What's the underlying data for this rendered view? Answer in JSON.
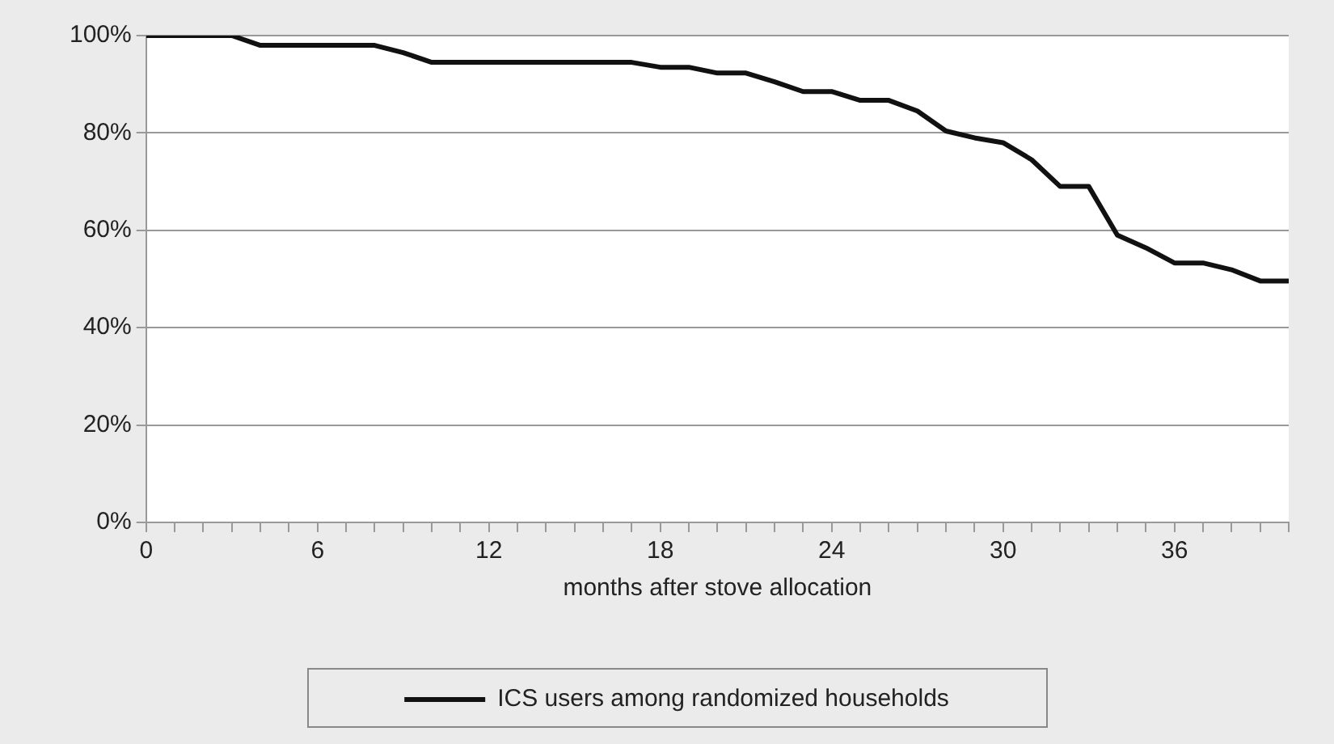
{
  "chart_data": {
    "type": "line",
    "xlabel": "months after stove allocation",
    "x": [
      0,
      1,
      2,
      3,
      4,
      5,
      6,
      7,
      8,
      9,
      10,
      11,
      12,
      13,
      14,
      15,
      16,
      17,
      18,
      19,
      20,
      21,
      22,
      23,
      24,
      25,
      26,
      27,
      28,
      29,
      30,
      31,
      32,
      33,
      34,
      35,
      36,
      37,
      38,
      39,
      40
    ],
    "series": [
      {
        "name": "ICS users among randomized households",
        "color": "#111111",
        "values": [
          100,
          100,
          100,
          100,
          98,
          98,
          98,
          98,
          98,
          96.5,
          94.5,
          94.5,
          94.5,
          94.5,
          94.5,
          94.5,
          94.5,
          94.5,
          93.5,
          93.5,
          92.3,
          92.3,
          90.5,
          88.5,
          88.5,
          86.7,
          86.7,
          84.5,
          80.4,
          79,
          78,
          74.5,
          69,
          69,
          59,
          56.4,
          53.3,
          53.3,
          51.9,
          49.6,
          49.6
        ]
      }
    ],
    "xlim": [
      0,
      40
    ],
    "xticks": [
      0,
      {
        "value": 1,
        "label": null
      },
      {
        "value": 2,
        "label": null
      },
      {
        "value": 3,
        "label": null
      },
      {
        "value": 4,
        "label": null
      },
      {
        "value": 5,
        "label": null
      },
      6,
      {
        "value": 7,
        "label": null
      },
      {
        "value": 8,
        "label": null
      },
      {
        "value": 9,
        "label": null
      },
      {
        "value": 10,
        "label": null
      },
      {
        "value": 11,
        "label": null
      },
      12,
      {
        "value": 13,
        "label": null
      },
      {
        "value": 14,
        "label": null
      },
      {
        "value": 15,
        "label": null
      },
      {
        "value": 16,
        "label": null
      },
      {
        "value": 17,
        "label": null
      },
      18,
      {
        "value": 19,
        "label": null
      },
      {
        "value": 20,
        "label": null
      },
      {
        "value": 21,
        "label": null
      },
      {
        "value": 22,
        "label": null
      },
      {
        "value": 23,
        "label": null
      },
      24,
      {
        "value": 25,
        "label": null
      },
      {
        "value": 26,
        "label": null
      },
      {
        "value": 27,
        "label": null
      },
      {
        "value": 28,
        "label": null
      },
      {
        "value": 29,
        "label": null
      },
      30,
      {
        "value": 31,
        "label": null
      },
      {
        "value": 32,
        "label": null
      },
      {
        "value": 33,
        "label": null
      },
      {
        "value": 34,
        "label": null
      },
      {
        "value": 35,
        "label": null
      },
      36,
      {
        "value": 37,
        "label": null
      },
      {
        "value": 38,
        "label": null
      },
      {
        "value": 39,
        "label": null
      },
      {
        "value": 40,
        "label": null
      }
    ],
    "ylim": [
      0,
      100
    ],
    "yticks": [
      {
        "value": 0,
        "label": "0%"
      },
      {
        "value": 20,
        "label": "20%"
      },
      {
        "value": 40,
        "label": "40%"
      },
      {
        "value": 60,
        "label": "60%"
      },
      {
        "value": 80,
        "label": "80%"
      },
      {
        "value": 100,
        "label": "100%"
      }
    ],
    "grid": "y",
    "legend": "bottom",
    "marker": "none",
    "line_style": "solid"
  }
}
